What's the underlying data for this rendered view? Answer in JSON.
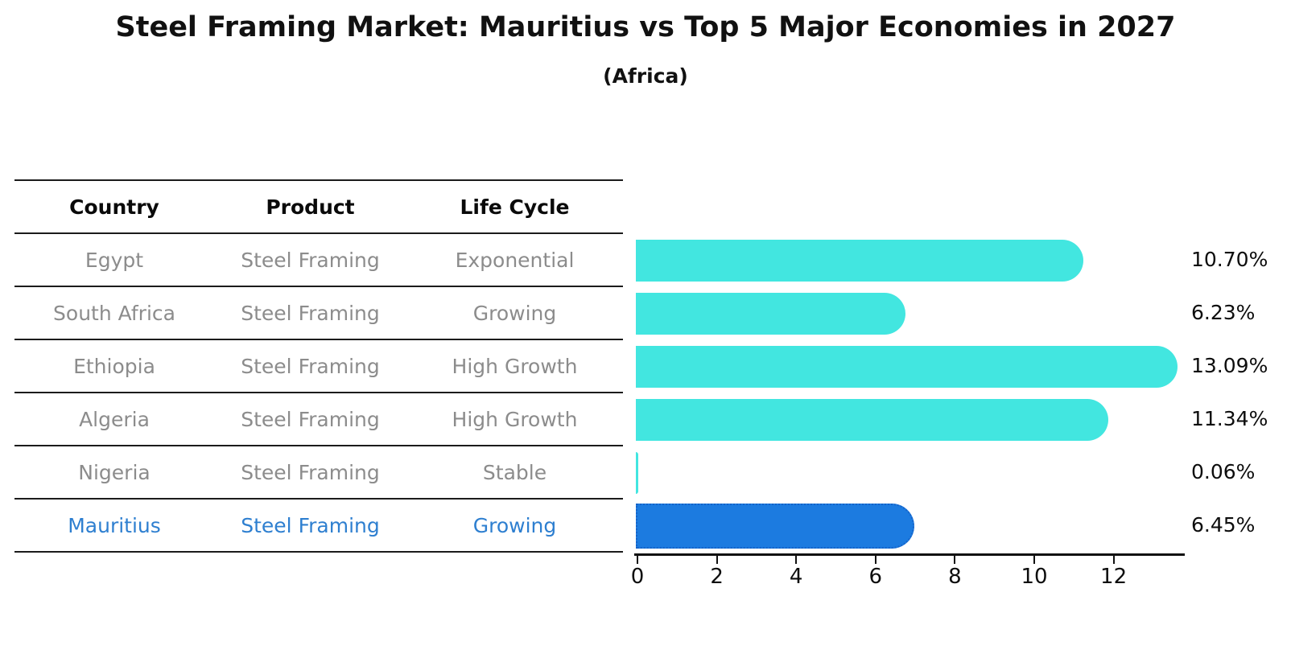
{
  "title": "Steel Framing Market: Mauritius vs Top 5 Major Economies in 2027",
  "subtitle": "(Africa)",
  "table": {
    "headers": [
      "Country",
      "Product",
      "Life Cycle"
    ],
    "rows": [
      {
        "country": "Egypt",
        "product": "Steel Framing",
        "life_cycle": "Exponential",
        "highlight": false
      },
      {
        "country": "South Africa",
        "product": "Steel Framing",
        "life_cycle": "Growing",
        "highlight": false
      },
      {
        "country": "Ethiopia",
        "product": "Steel Framing",
        "life_cycle": "High Growth",
        "highlight": false
      },
      {
        "country": "Algeria",
        "product": "Steel Framing",
        "life_cycle": "High Growth",
        "highlight": false
      },
      {
        "country": "Nigeria",
        "product": "Steel Framing",
        "life_cycle": "Stable",
        "highlight": false
      },
      {
        "country": "Mauritius",
        "product": "Steel Framing",
        "life_cycle": "Growing",
        "highlight": true
      }
    ]
  },
  "chart_data": {
    "type": "bar",
    "orientation": "horizontal",
    "categories": [
      "Egypt",
      "South Africa",
      "Ethiopia",
      "Algeria",
      "Nigeria",
      "Mauritius"
    ],
    "values": [
      10.7,
      6.23,
      13.09,
      11.34,
      0.06,
      6.45
    ],
    "value_labels": [
      "10.70%",
      "6.23%",
      "13.09%",
      "11.34%",
      "0.06%",
      "6.45%"
    ],
    "x_ticks": [
      0,
      2,
      4,
      6,
      8,
      10,
      12
    ],
    "xlim": [
      0,
      13.8
    ],
    "grid": false,
    "legend": false,
    "bar_color": "#42E6E0",
    "highlight_bar_color": "#1C7BE0",
    "highlight_border_color": "#1563C9",
    "highlight_text_color": "#2E7FD0",
    "highlight_index": 5,
    "unit": "%"
  }
}
